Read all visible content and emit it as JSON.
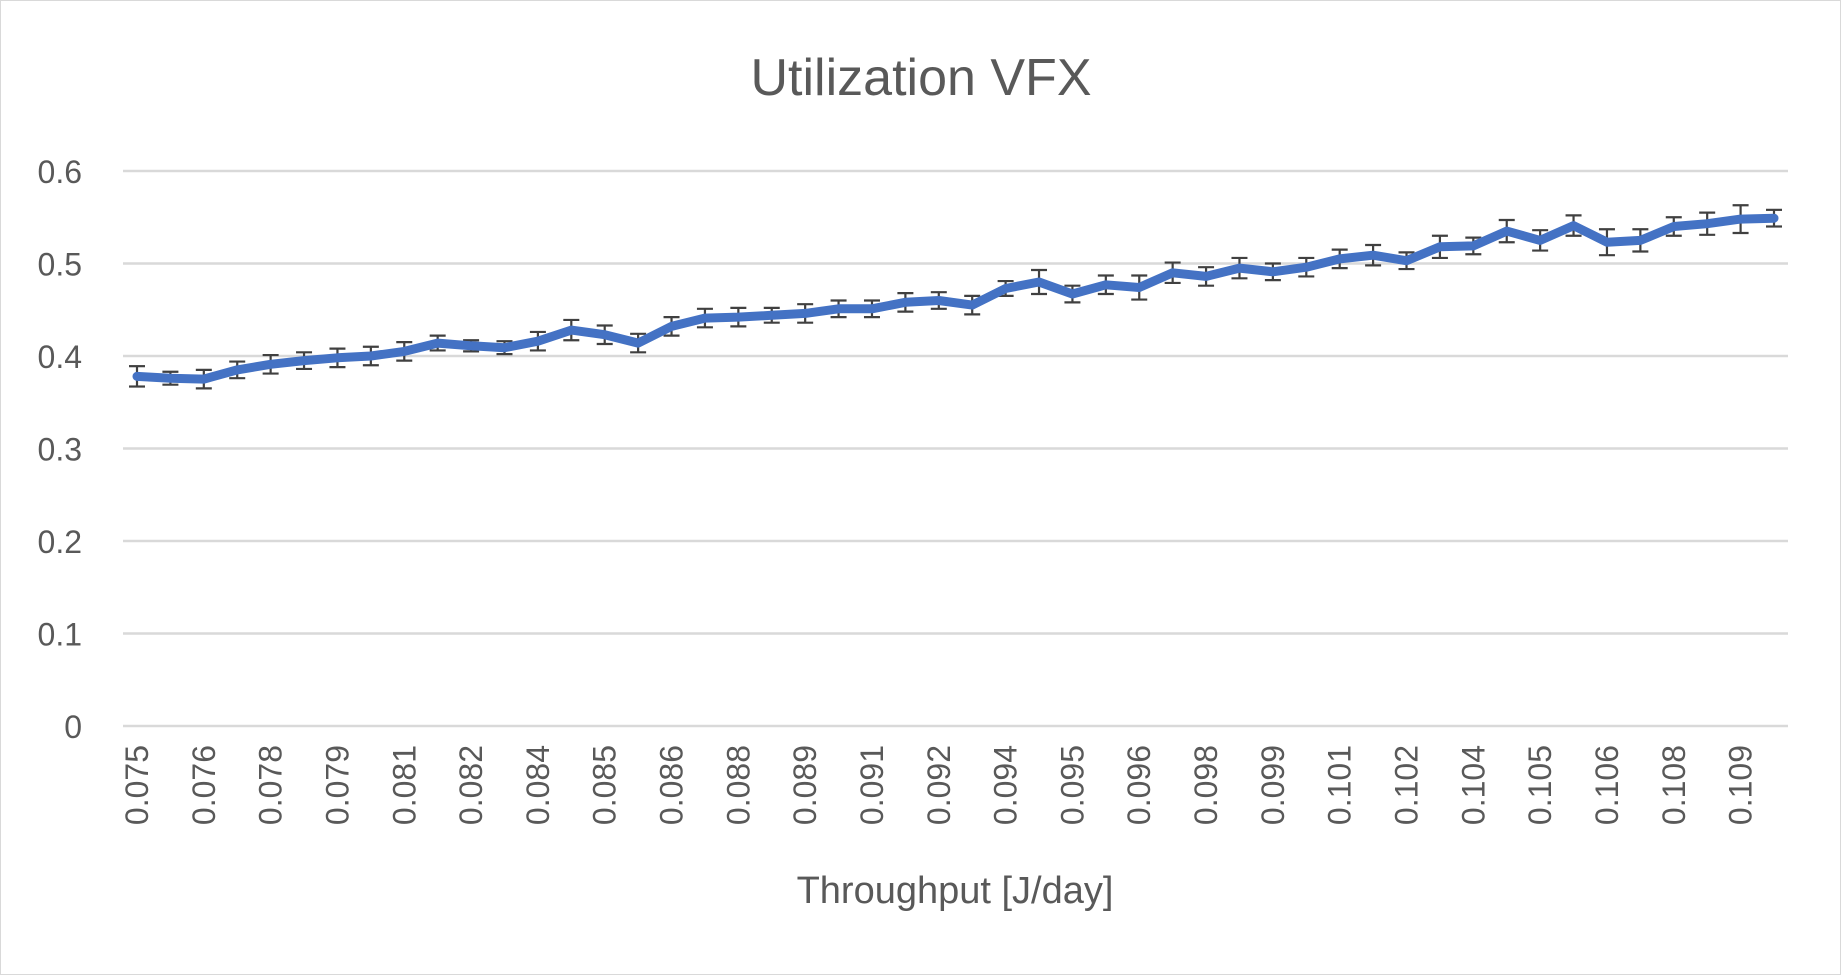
{
  "chart_data": {
    "type": "line",
    "title": "Utilization VFX",
    "xlabel": "Throughput [J/day]",
    "ylabel": "",
    "ylim": [
      0,
      0.6
    ],
    "yticks": [
      0,
      0.1,
      0.2,
      0.3,
      0.4,
      0.5,
      0.6
    ],
    "ytick_labels": [
      "0",
      "0.1",
      "0.2",
      "0.3",
      "0.4",
      "0.5",
      "0.6"
    ],
    "grid": true,
    "legend": "none",
    "x_tick_labels": [
      "0.075",
      "0.076",
      "0.078",
      "0.079",
      "0.081",
      "0.082",
      "0.084",
      "0.085",
      "0.086",
      "0.088",
      "0.089",
      "0.091",
      "0.092",
      "0.094",
      "0.095",
      "0.096",
      "0.098",
      "0.099",
      "0.101",
      "0.102",
      "0.104",
      "0.105",
      "0.106",
      "0.108",
      "0.109"
    ],
    "x_tick_every": 2,
    "series": [
      {
        "color": "#4472c4",
        "errorbar_color": "#404040",
        "values": [
          0.378,
          0.376,
          0.375,
          0.385,
          0.391,
          0.395,
          0.398,
          0.4,
          0.405,
          0.414,
          0.411,
          0.409,
          0.416,
          0.428,
          0.423,
          0.414,
          0.432,
          0.441,
          0.442,
          0.444,
          0.446,
          0.451,
          0.451,
          0.458,
          0.46,
          0.455,
          0.473,
          0.48,
          0.467,
          0.477,
          0.474,
          0.49,
          0.486,
          0.495,
          0.491,
          0.496,
          0.505,
          0.509,
          0.503,
          0.518,
          0.519,
          0.535,
          0.525,
          0.541,
          0.523,
          0.525,
          0.54,
          0.543,
          0.548,
          0.549
        ],
        "errors": [
          0.011,
          0.007,
          0.01,
          0.009,
          0.01,
          0.009,
          0.01,
          0.01,
          0.01,
          0.008,
          0.006,
          0.007,
          0.01,
          0.011,
          0.01,
          0.01,
          0.01,
          0.01,
          0.01,
          0.008,
          0.01,
          0.009,
          0.009,
          0.01,
          0.009,
          0.01,
          0.008,
          0.013,
          0.009,
          0.01,
          0.013,
          0.011,
          0.01,
          0.011,
          0.009,
          0.01,
          0.01,
          0.011,
          0.009,
          0.012,
          0.009,
          0.012,
          0.011,
          0.011,
          0.014,
          0.012,
          0.01,
          0.012,
          0.015,
          0.009
        ]
      }
    ]
  }
}
